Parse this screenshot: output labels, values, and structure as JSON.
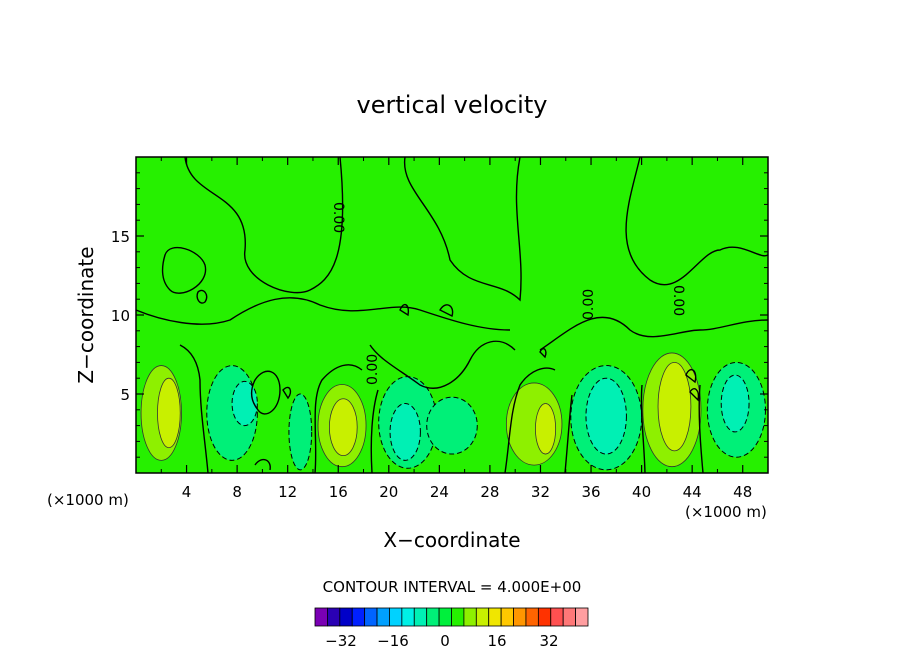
{
  "chart_data": {
    "type": "heatmap",
    "title": "vertical velocity",
    "xlabel": "X−coordinate",
    "ylabel": "Z−coordinate",
    "x_units_left": "(×1000 m)",
    "x_units_right": "(×1000 m)",
    "xlim": [
      0,
      50
    ],
    "ylim": [
      0,
      20
    ],
    "x_ticks": [
      "4",
      "8",
      "12",
      "16",
      "20",
      "24",
      "28",
      "32",
      "36",
      "40",
      "44",
      "48"
    ],
    "y_ticks": [
      "5",
      "10",
      "15"
    ],
    "contour_interval_text": "CONTOUR INTERVAL = 4.000E+00",
    "contour_label": "0.00",
    "colorbar": {
      "min": -36,
      "max": 36,
      "step": 4,
      "tick_labels": [
        "−32",
        "−16",
        "0",
        "16",
        "32"
      ],
      "tick_values": [
        -32,
        -16,
        0,
        16,
        32
      ],
      "colors": [
        "#7a00b4",
        "#2a00b4",
        "#0000c8",
        "#0020ff",
        "#0064ff",
        "#00a0ff",
        "#00d2ff",
        "#00f0e6",
        "#00f0b4",
        "#00f078",
        "#00f03c",
        "#26f000",
        "#8ef000",
        "#c8f000",
        "#f0e600",
        "#ffc800",
        "#ff9600",
        "#ff6400",
        "#ff3200",
        "#ff5050",
        "#ff7878",
        "#ff9ea0"
      ]
    },
    "background_color": "#26f000",
    "cells": [
      {
        "x": 2,
        "z": 3.8,
        "rx": 1.6,
        "rz": 3.0,
        "value": 12,
        "color": "#8ef000"
      },
      {
        "x": 2.6,
        "z": 3.8,
        "rx": 0.9,
        "rz": 2.2,
        "value": 16,
        "color": "#c8f000"
      },
      {
        "x": 7.6,
        "z": 3.8,
        "rx": 2.0,
        "rz": 3.0,
        "value": -4,
        "color": "#00f078"
      },
      {
        "x": 8.6,
        "z": 4.4,
        "rx": 1.0,
        "rz": 1.4,
        "value": -8,
        "color": "#00f0b4"
      },
      {
        "x": 13,
        "z": 2.6,
        "rx": 0.9,
        "rz": 2.4,
        "value": -4,
        "color": "#00f078"
      },
      {
        "x": 16.3,
        "z": 3.0,
        "rx": 1.9,
        "rz": 2.6,
        "value": 12,
        "color": "#8ef000"
      },
      {
        "x": 16.4,
        "z": 2.9,
        "rx": 1.1,
        "rz": 1.8,
        "value": 16,
        "color": "#c8f000"
      },
      {
        "x": 21.5,
        "z": 3.2,
        "rx": 2.3,
        "rz": 2.9,
        "value": -4,
        "color": "#00f078"
      },
      {
        "x": 21.3,
        "z": 2.6,
        "rx": 1.2,
        "rz": 1.8,
        "value": -8,
        "color": "#00f0b4"
      },
      {
        "x": 25,
        "z": 3.0,
        "rx": 2.0,
        "rz": 1.8,
        "value": -4,
        "color": "#00f078"
      },
      {
        "x": 31.5,
        "z": 3.1,
        "rx": 2.2,
        "rz": 2.6,
        "value": 12,
        "color": "#8ef000"
      },
      {
        "x": 32.4,
        "z": 2.8,
        "rx": 0.8,
        "rz": 1.6,
        "value": 16,
        "color": "#c8f000"
      },
      {
        "x": 37.2,
        "z": 3.5,
        "rx": 2.8,
        "rz": 3.3,
        "value": -4,
        "color": "#00f078"
      },
      {
        "x": 37.2,
        "z": 3.6,
        "rx": 1.6,
        "rz": 2.4,
        "value": -8,
        "color": "#00f0b4"
      },
      {
        "x": 42.4,
        "z": 4.0,
        "rx": 2.3,
        "rz": 3.6,
        "value": 12,
        "color": "#8ef000"
      },
      {
        "x": 42.6,
        "z": 4.2,
        "rx": 1.3,
        "rz": 2.8,
        "value": 16,
        "color": "#c8f000"
      },
      {
        "x": 47.5,
        "z": 4.0,
        "rx": 2.3,
        "rz": 3.0,
        "value": -4,
        "color": "#00f078"
      },
      {
        "x": 47.4,
        "z": 4.4,
        "rx": 1.1,
        "rz": 1.8,
        "value": -8,
        "color": "#00f0b4"
      }
    ]
  }
}
